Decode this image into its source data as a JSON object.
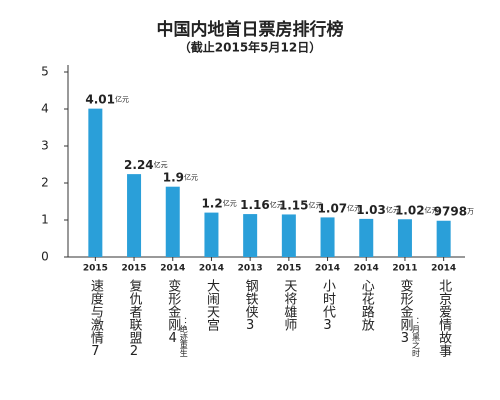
{
  "chart_data": {
    "type": "bar",
    "title": "中国内地首日票房排行榜",
    "subtitle": "（截止2015年5月12日）",
    "categories": [
      "速度与激情7",
      "复仇者联盟2",
      "变形金刚4",
      "大闹天宫",
      "钢铁侠3",
      "天将雄师",
      "小时代3",
      "心花路放",
      "变形金刚3",
      "北京爱情故事"
    ],
    "category_notes": [
      null,
      null,
      "：绝迹重生",
      null,
      null,
      null,
      null,
      null,
      "：月黑之时",
      null
    ],
    "years": [
      2015,
      2015,
      2014,
      2014,
      2013,
      2015,
      2014,
      2014,
      2011,
      2014
    ],
    "values": [
      4.01,
      2.24,
      1.9,
      1.2,
      1.16,
      1.15,
      1.07,
      1.03,
      1.02,
      0.9798
    ],
    "value_labels": [
      "4.01亿元",
      "2.24亿元",
      "1.9亿元",
      "1.2亿元",
      "1.16亿元",
      "1.15亿元",
      "1.07亿元",
      "1.03亿元",
      "1.02亿元",
      "9798万"
    ],
    "color": "#2a9fd9",
    "ylim": [
      0,
      5
    ],
    "yticks": [
      0,
      1,
      2,
      3,
      4,
      5
    ],
    "grid": false
  }
}
